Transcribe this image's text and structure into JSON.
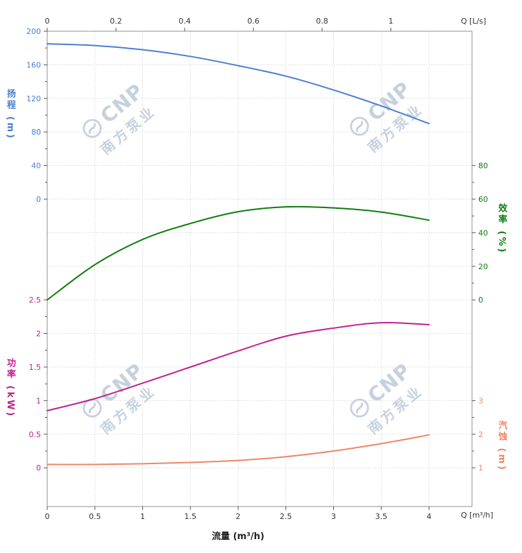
{
  "watermark": {
    "brand": "CNP",
    "company": "南方泵业"
  },
  "chart_data": {
    "type": "line",
    "title": "",
    "legend": "none",
    "grid": {
      "show": true,
      "color": "#d7d7d7",
      "border_color": "#8f8f8f",
      "tick_color": "#555555"
    },
    "plot": {
      "x_bottom": {
        "title": "流量 (m³/h)",
        "end_label": "Q [m³/h]",
        "tick_labels": [
          "0",
          "0.5",
          "1",
          "1.5",
          "2",
          "2.5",
          "3",
          "3.5",
          "4"
        ],
        "tick_values": [
          0,
          0.5,
          1,
          1.5,
          2,
          2.5,
          3,
          3.5,
          4
        ],
        "range": [
          0,
          4.45
        ]
      },
      "x_top": {
        "end_label": "Q [L/s]",
        "tick_labels": [
          "0",
          "0.2",
          "0.4",
          "0.6",
          "0.8",
          "1"
        ],
        "tick_values": [
          0,
          0.2,
          0.4,
          0.6,
          0.8,
          1
        ],
        "to_m3h": 3.6
      }
    },
    "axes": {
      "head": {
        "title": "扬程 (m)",
        "side": "left",
        "color": "#4a7ed2",
        "tick_labels": [
          "200",
          "160",
          "120",
          "80",
          "40",
          "0"
        ],
        "tick_values": [
          200,
          160,
          120,
          80,
          40,
          0
        ]
      },
      "efficiency": {
        "title": "效率 (%)",
        "side": "right",
        "color": "#0e7d0e",
        "tick_labels": [
          "80",
          "60",
          "40",
          "20",
          "0"
        ],
        "tick_values": [
          80,
          60,
          40,
          20,
          0
        ]
      },
      "power": {
        "title": "功率 (kW)",
        "side": "left",
        "color": "#c02090",
        "tick_labels": [
          "2.5",
          "2",
          "1.5",
          "1",
          "0.5",
          "0"
        ],
        "tick_values": [
          2.5,
          2,
          1.5,
          1,
          0.5,
          0
        ]
      },
      "npsh": {
        "title": "汽蚀 (m)",
        "side": "right",
        "color": "#f08466",
        "tick_labels": [
          "3",
          "2",
          "1"
        ],
        "tick_values": [
          3,
          2,
          1
        ]
      }
    },
    "series": [
      {
        "name": "head-curve",
        "axis": "head",
        "color": "#4a7ed2",
        "unit": "m",
        "x": [
          0,
          0.5,
          1,
          1.5,
          2,
          2.5,
          3,
          3.5,
          4
        ],
        "y": [
          185,
          183,
          178,
          170,
          159,
          146.5,
          130,
          111,
          90
        ]
      },
      {
        "name": "efficiency-curve",
        "axis": "efficiency",
        "color": "#0e7d0e",
        "unit": "%",
        "x": [
          0,
          0.5,
          1,
          1.5,
          2,
          2.5,
          3,
          3.5,
          4
        ],
        "y": [
          0,
          21,
          36,
          45.5,
          52.5,
          55.4,
          54.8,
          52.3,
          47.5
        ]
      },
      {
        "name": "power-curve",
        "axis": "power",
        "color": "#c02090",
        "unit": "kW",
        "x": [
          0,
          0.5,
          1,
          1.5,
          2,
          2.5,
          3,
          3.5,
          4
        ],
        "y": [
          0.85,
          1.03,
          1.26,
          1.5,
          1.74,
          1.96,
          2.08,
          2.16,
          2.13
        ]
      },
      {
        "name": "npsh-curve",
        "axis": "npsh",
        "color": "#f08466",
        "unit": "m",
        "x": [
          0,
          0.5,
          1,
          1.5,
          2,
          2.5,
          3,
          3.5,
          4
        ],
        "y": [
          1.1,
          1.1,
          1.12,
          1.16,
          1.22,
          1.33,
          1.5,
          1.72,
          1.98
        ]
      }
    ]
  }
}
